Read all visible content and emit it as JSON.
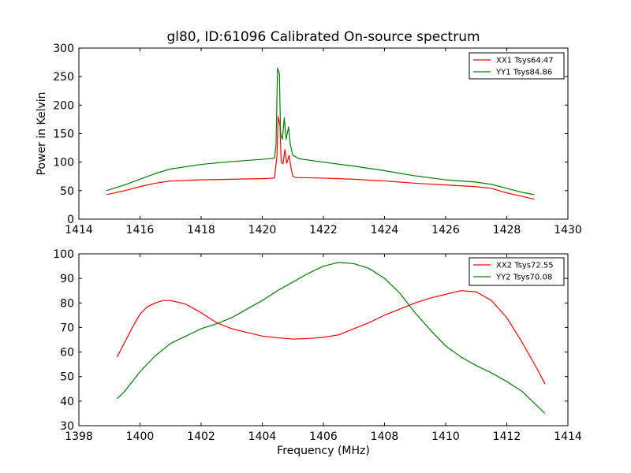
{
  "title": "gl80, ID:61096 Calibrated On-source spectrum",
  "colors": {
    "red": "#ff0000",
    "green": "#008000"
  },
  "chart_data": [
    {
      "type": "line",
      "title": "gl80, ID:61096 Calibrated On-source spectrum",
      "xlabel": "",
      "ylabel": "Power in Kelvin",
      "xlim": [
        1414,
        1430
      ],
      "ylim": [
        0,
        300
      ],
      "xticks": [
        1414,
        1416,
        1418,
        1420,
        1422,
        1424,
        1426,
        1428,
        1430
      ],
      "yticks": [
        0,
        50,
        100,
        150,
        200,
        250,
        300
      ],
      "grid": false,
      "legend": "top-right",
      "series": [
        {
          "name": "XX1 Tsys64.47",
          "color": "#ff0000",
          "points": [
            [
              1414.9,
              43
            ],
            [
              1415.5,
              50
            ],
            [
              1416.0,
              57
            ],
            [
              1416.5,
              63
            ],
            [
              1417.0,
              67
            ],
            [
              1418.0,
              69
            ],
            [
              1419.0,
              70
            ],
            [
              1420.0,
              71
            ],
            [
              1420.4,
              72
            ],
            [
              1420.48,
              110
            ],
            [
              1420.52,
              180
            ],
            [
              1420.58,
              165
            ],
            [
              1420.62,
              100
            ],
            [
              1420.68,
              97
            ],
            [
              1420.74,
              122
            ],
            [
              1420.8,
              98
            ],
            [
              1420.88,
              112
            ],
            [
              1420.94,
              90
            ],
            [
              1421.0,
              75
            ],
            [
              1421.1,
              73
            ],
            [
              1422.0,
              72
            ],
            [
              1423.0,
              70
            ],
            [
              1424.0,
              67
            ],
            [
              1425.0,
              63
            ],
            [
              1426.0,
              60
            ],
            [
              1427.0,
              57
            ],
            [
              1427.5,
              54
            ],
            [
              1428.0,
              46
            ],
            [
              1428.5,
              40
            ],
            [
              1428.9,
              35
            ]
          ]
        },
        {
          "name": "YY1 Tsys84.86",
          "color": "#008000",
          "points": [
            [
              1414.9,
              50
            ],
            [
              1415.5,
              60
            ],
            [
              1416.0,
              70
            ],
            [
              1416.5,
              80
            ],
            [
              1417.0,
              88
            ],
            [
              1418.0,
              96
            ],
            [
              1419.0,
              101
            ],
            [
              1420.0,
              105
            ],
            [
              1420.4,
              107
            ],
            [
              1420.45,
              130
            ],
            [
              1420.5,
              265
            ],
            [
              1420.56,
              255
            ],
            [
              1420.6,
              150
            ],
            [
              1420.66,
              140
            ],
            [
              1420.72,
              178
            ],
            [
              1420.78,
              140
            ],
            [
              1420.86,
              162
            ],
            [
              1420.92,
              130
            ],
            [
              1421.0,
              112
            ],
            [
              1421.2,
              106
            ],
            [
              1422.0,
              100
            ],
            [
              1423.0,
              93
            ],
            [
              1424.0,
              85
            ],
            [
              1425.0,
              76
            ],
            [
              1426.0,
              69
            ],
            [
              1427.0,
              65
            ],
            [
              1427.5,
              61
            ],
            [
              1428.0,
              54
            ],
            [
              1428.5,
              47
            ],
            [
              1428.9,
              43
            ]
          ]
        }
      ]
    },
    {
      "type": "line",
      "title": "",
      "xlabel": "Frequency (MHz)",
      "ylabel": "",
      "xlim": [
        1398,
        1414
      ],
      "ylim": [
        30,
        100
      ],
      "xticks": [
        1398,
        1400,
        1402,
        1404,
        1406,
        1408,
        1410,
        1412,
        1414
      ],
      "yticks": [
        30,
        40,
        50,
        60,
        70,
        80,
        90,
        100
      ],
      "grid": false,
      "legend": "top-right",
      "series": [
        {
          "name": "XX2 Tsys72.55",
          "color": "#ff0000",
          "points": [
            [
              1399.25,
              58
            ],
            [
              1399.5,
              64
            ],
            [
              1399.75,
              70
            ],
            [
              1400.0,
              75.5
            ],
            [
              1400.25,
              78.5
            ],
            [
              1400.5,
              80
            ],
            [
              1400.75,
              81
            ],
            [
              1401.0,
              81
            ],
            [
              1401.5,
              79.5
            ],
            [
              1402.0,
              76
            ],
            [
              1402.5,
              72
            ],
            [
              1403.0,
              69.5
            ],
            [
              1403.5,
              68
            ],
            [
              1404.0,
              66.5
            ],
            [
              1404.5,
              65.8
            ],
            [
              1405.0,
              65.3
            ],
            [
              1405.5,
              65.5
            ],
            [
              1406.0,
              66
            ],
            [
              1406.5,
              67
            ],
            [
              1407.0,
              69.5
            ],
            [
              1407.5,
              72
            ],
            [
              1408.0,
              75
            ],
            [
              1408.5,
              77.5
            ],
            [
              1409.0,
              80
            ],
            [
              1409.5,
              82
            ],
            [
              1410.0,
              83.5
            ],
            [
              1410.5,
              85
            ],
            [
              1411.0,
              84.5
            ],
            [
              1411.5,
              81
            ],
            [
              1412.0,
              74
            ],
            [
              1412.5,
              64
            ],
            [
              1413.0,
              53
            ],
            [
              1413.25,
              47
            ]
          ]
        },
        {
          "name": "YY2 Tsys70.08",
          "color": "#008000",
          "points": [
            [
              1399.25,
              41
            ],
            [
              1399.5,
              44
            ],
            [
              1400.0,
              52
            ],
            [
              1400.5,
              58.5
            ],
            [
              1401.0,
              63.5
            ],
            [
              1401.5,
              66.5
            ],
            [
              1402.0,
              69.5
            ],
            [
              1402.5,
              71.5
            ],
            [
              1403.0,
              74
            ],
            [
              1403.5,
              77.5
            ],
            [
              1404.0,
              81
            ],
            [
              1404.5,
              85
            ],
            [
              1405.0,
              88.5
            ],
            [
              1405.5,
              92
            ],
            [
              1406.0,
              95
            ],
            [
              1406.5,
              96.5
            ],
            [
              1407.0,
              96
            ],
            [
              1407.5,
              94
            ],
            [
              1408.0,
              90
            ],
            [
              1408.5,
              84
            ],
            [
              1409.0,
              76
            ],
            [
              1409.5,
              69
            ],
            [
              1410.0,
              62.5
            ],
            [
              1410.5,
              58
            ],
            [
              1411.0,
              54.5
            ],
            [
              1411.5,
              51.5
            ],
            [
              1412.0,
              48
            ],
            [
              1412.5,
              44
            ],
            [
              1413.0,
              38
            ],
            [
              1413.25,
              35
            ]
          ]
        }
      ]
    }
  ]
}
